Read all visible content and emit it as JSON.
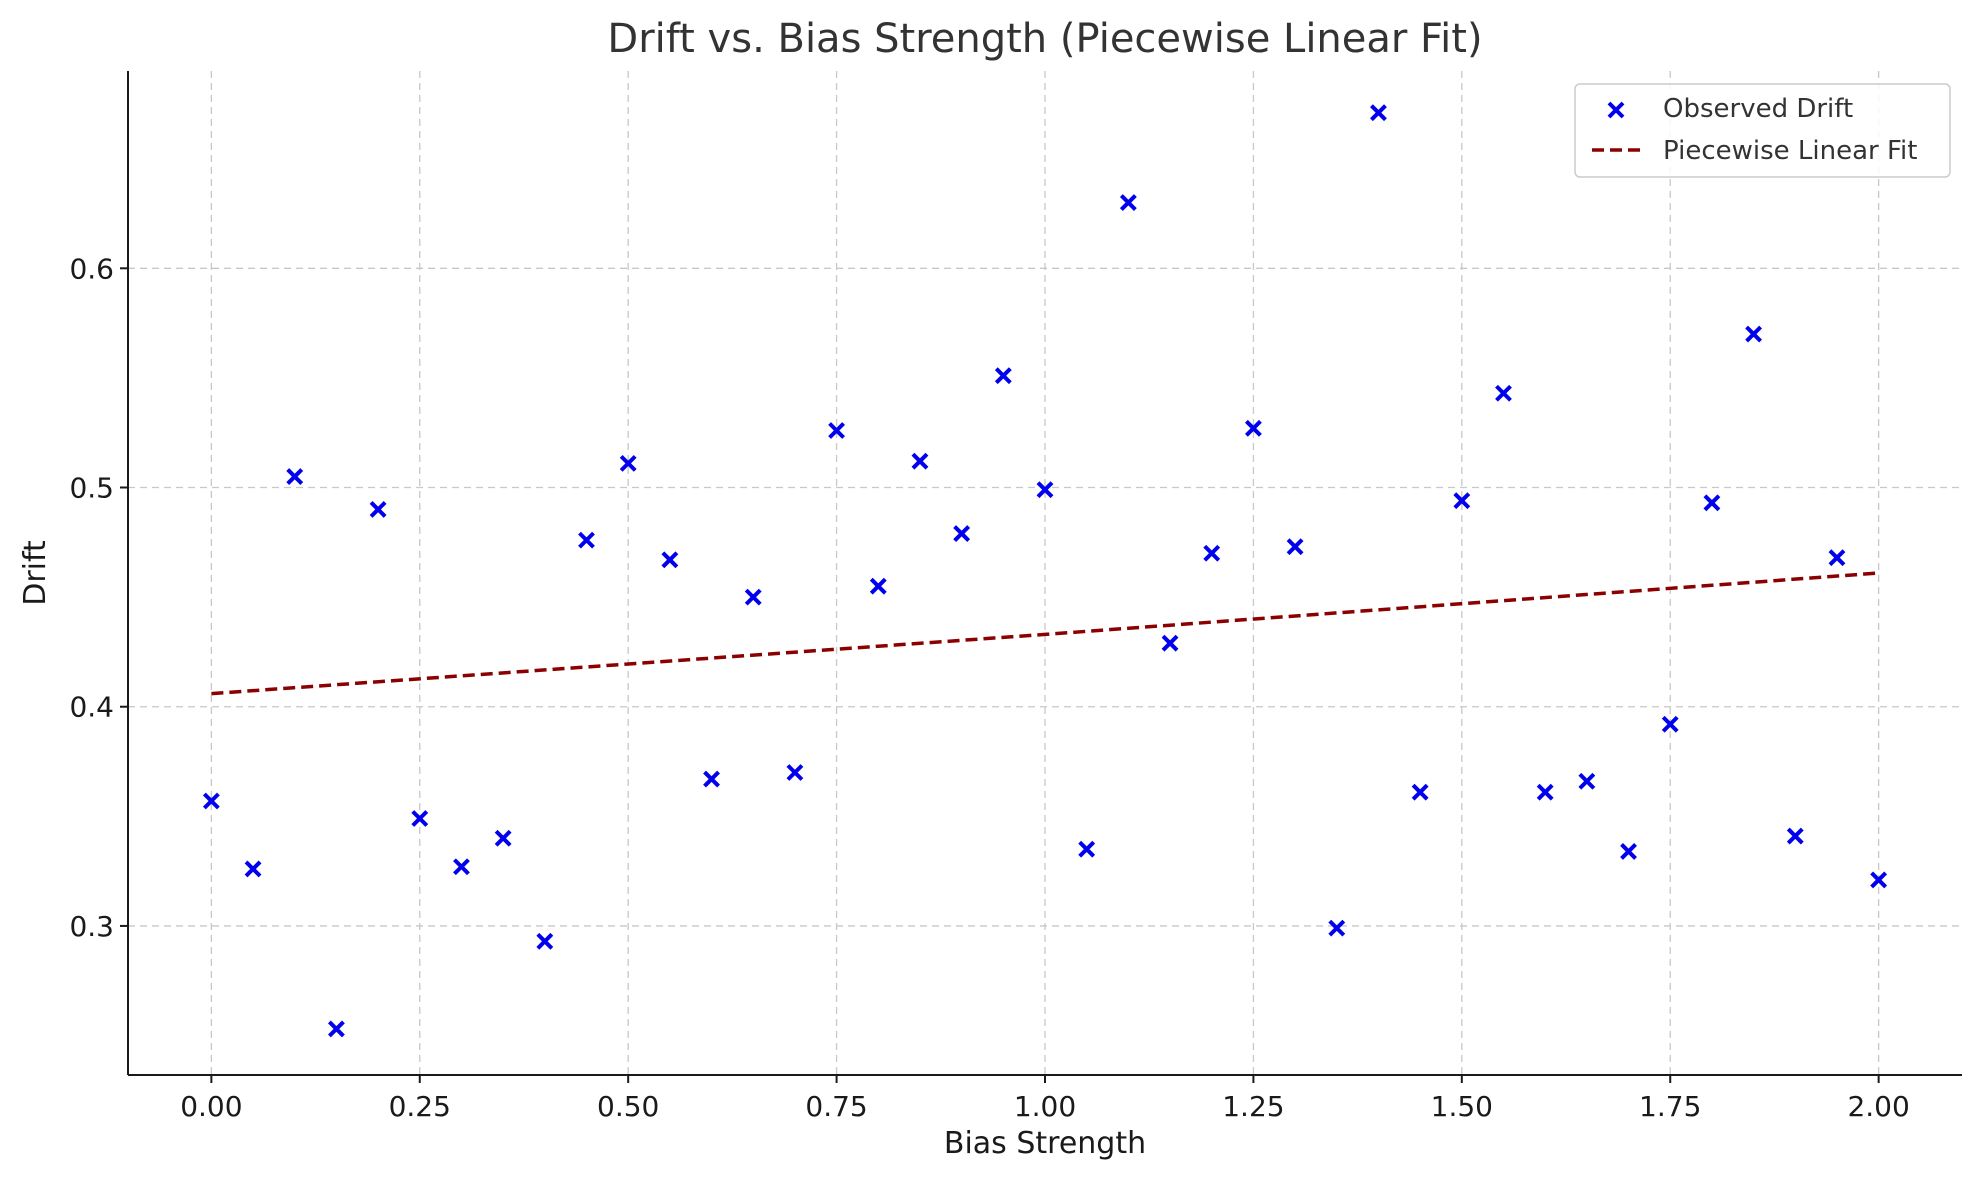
{
  "chart_data": {
    "type": "scatter",
    "title": "Drift vs. Bias Strength (Piecewise Linear Fit)",
    "xlabel": "Bias Strength",
    "ylabel": "Drift",
    "xlim": [
      -0.1,
      2.1
    ],
    "ylim": [
      0.232,
      0.69
    ],
    "xticks": [
      0.0,
      0.25,
      0.5,
      0.75,
      1.0,
      1.25,
      1.5,
      1.75,
      2.0
    ],
    "xtick_labels": [
      "0.00",
      "0.25",
      "0.50",
      "0.75",
      "1.00",
      "1.25",
      "1.50",
      "1.75",
      "2.00"
    ],
    "yticks": [
      0.3,
      0.4,
      0.5,
      0.6
    ],
    "ytick_labels": [
      "0.3",
      "0.4",
      "0.5",
      "0.6"
    ],
    "grid": true,
    "legend_position": "top-right",
    "series": [
      {
        "name": "Observed Drift",
        "kind": "scatter",
        "marker": "x",
        "color": "#0000ee",
        "x": [
          0.0,
          0.05,
          0.1,
          0.15,
          0.2,
          0.25,
          0.3,
          0.35,
          0.4,
          0.45,
          0.5,
          0.55,
          0.6,
          0.65,
          0.7,
          0.75,
          0.8,
          0.85,
          0.9,
          0.95,
          1.0,
          1.05,
          1.1,
          1.15,
          1.2,
          1.25,
          1.3,
          1.35,
          1.4,
          1.45,
          1.5,
          1.55,
          1.6,
          1.65,
          1.7,
          1.75,
          1.8,
          1.85,
          1.9,
          1.95,
          2.0
        ],
        "y": [
          0.357,
          0.326,
          0.505,
          0.253,
          0.49,
          0.349,
          0.327,
          0.34,
          0.293,
          0.476,
          0.511,
          0.467,
          0.367,
          0.45,
          0.37,
          0.526,
          0.455,
          0.512,
          0.479,
          0.551,
          0.499,
          0.335,
          0.63,
          0.429,
          0.47,
          0.527,
          0.473,
          0.299,
          0.671,
          0.361,
          0.494,
          0.543,
          0.361,
          0.366,
          0.334,
          0.392,
          0.493,
          0.57,
          0.341,
          0.468,
          0.321
        ]
      },
      {
        "name": "Piecewise Linear Fit",
        "kind": "line",
        "style": "dashed",
        "color": "#8b0000",
        "x": [
          0.0,
          1.0,
          2.0
        ],
        "y": [
          0.406,
          0.433,
          0.461
        ]
      }
    ]
  }
}
